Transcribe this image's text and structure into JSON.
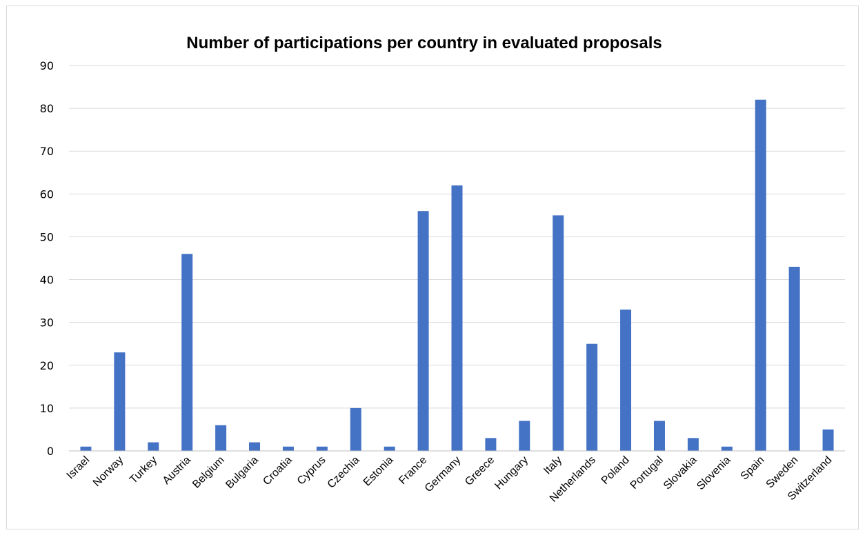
{
  "chart_data": {
    "type": "bar",
    "title": "Number of participations per country in evaluated proposals",
    "xlabel": "",
    "ylabel": "",
    "categories": [
      "Israel",
      "Norway",
      "Turkey",
      "Austria",
      "Belgium",
      "Bulgaria",
      "Croatia",
      "Cyprus",
      "Czechia",
      "Estonia",
      "France",
      "Germany",
      "Greece",
      "Hungary",
      "Italy",
      "Netherlands",
      "Poland",
      "Portugal",
      "Slovakia",
      "Slovenia",
      "Spain",
      "Sweden",
      "Switzerland"
    ],
    "values": [
      1,
      23,
      2,
      46,
      6,
      2,
      1,
      1,
      10,
      1,
      56,
      62,
      3,
      7,
      55,
      25,
      33,
      7,
      3,
      1,
      82,
      43,
      5
    ],
    "ylim": [
      0,
      90
    ],
    "yticks": [
      0,
      10,
      20,
      30,
      40,
      50,
      60,
      70,
      80,
      90
    ],
    "grid": true,
    "legend": "none",
    "colors": {
      "bar": "#4472C4",
      "grid": "#d9d9d9",
      "axis": "#bfbfbf"
    }
  }
}
